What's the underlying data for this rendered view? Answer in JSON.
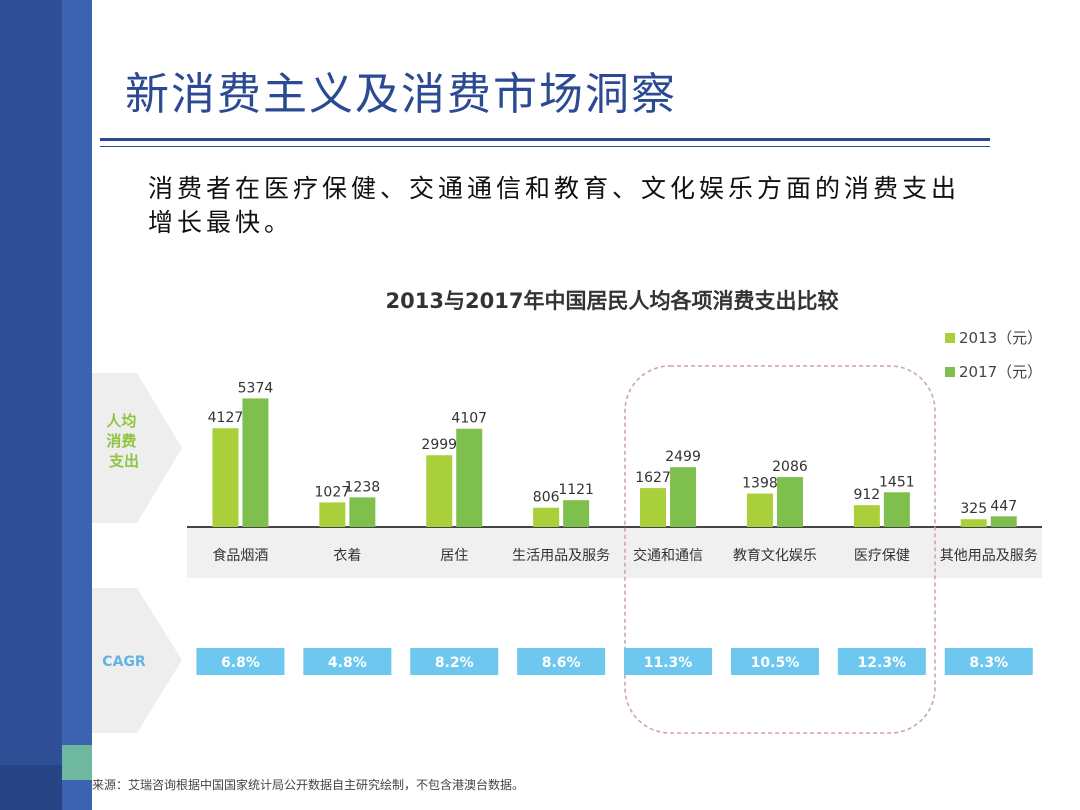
{
  "slide": {
    "title": "新消费主义及消费市场洞察",
    "subtitle": "消费者在医疗保健、交通通信和教育、文化娱乐方面的消费支出增长最快。",
    "source": "来源：艾瑞咨询根据中国国家统计局公开数据自主研究绘制，不包含港澳台数据。"
  },
  "colors": {
    "series_2013": "#a9cf3b",
    "series_2017": "#7fbf4d",
    "cagr_box": "#6ec7ef",
    "arrow": "#eeeeee",
    "row_label": "#8ec640",
    "cagr_label": "#5fb4e3"
  },
  "chart_data": {
    "type": "bar",
    "title": "2013与2017年中国居民人均各项消费支出比较",
    "row_labels": {
      "spending": "人均消费支出",
      "cagr": "CAGR"
    },
    "categories": [
      "食品烟酒",
      "衣着",
      "居住",
      "生活用品及服务",
      "交通和通信",
      "教育文化娱乐",
      "医疗保健",
      "其他用品及服务"
    ],
    "series": [
      {
        "name": "2013（元）",
        "values": [
          4127,
          1027,
          2999,
          806,
          1627,
          1398,
          912,
          325
        ]
      },
      {
        "name": "2017（元）",
        "values": [
          5374,
          1238,
          4107,
          1121,
          2499,
          2086,
          1451,
          447
        ]
      }
    ],
    "cagr": [
      "6.8%",
      "4.8%",
      "8.2%",
      "8.6%",
      "11.3%",
      "10.5%",
      "12.3%",
      "8.3%"
    ],
    "ylim": [
      0,
      5600
    ],
    "legend_position": "top-right",
    "highlight_categories": [
      "交通和通信",
      "教育文化娱乐",
      "医疗保健"
    ]
  }
}
